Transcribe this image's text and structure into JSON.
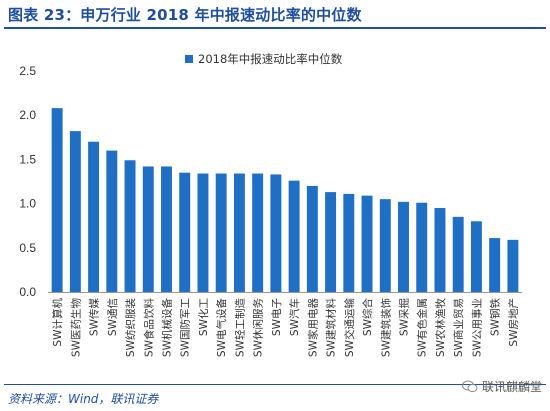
{
  "header": {
    "title": "图表 23：申万行业 2018 年中报速动比率的中位数"
  },
  "footer": {
    "source": "资料来源：Wind，联讯证券",
    "watermark": "联讯麒麟堂"
  },
  "colors": {
    "bar": "#1f6fc5",
    "accent": "#1f4e9c"
  },
  "chart_data": {
    "type": "bar",
    "title": "",
    "xlabel": "",
    "ylabel": "",
    "legend": "top-center",
    "grid": false,
    "ylim": [
      0,
      2.5
    ],
    "yticks": [
      "0.0",
      "0.5",
      "1.0",
      "1.5",
      "2.0",
      "2.5"
    ],
    "categories": [
      "SW计算机",
      "SW医药生物",
      "SW传媒",
      "SW通信",
      "SW纺织服装",
      "SW食品饮料",
      "SW机械设备",
      "SW国防军工",
      "SW化工",
      "SW电气设备",
      "SW轻工制造",
      "SW休闲服务",
      "SW电子",
      "SW汽车",
      "SW家用电器",
      "SW建筑材料",
      "SW交通运输",
      "SW综合",
      "SW建筑装饰",
      "SW采掘",
      "SW有色金属",
      "SW农林渔牧",
      "SW商业贸易",
      "SW公用事业",
      "SW钢铁",
      "SW房地产"
    ],
    "series": [
      {
        "name": "2018年中报速动比率中位数",
        "values": [
          2.08,
          1.82,
          1.7,
          1.6,
          1.49,
          1.42,
          1.42,
          1.35,
          1.34,
          1.34,
          1.34,
          1.34,
          1.33,
          1.26,
          1.2,
          1.13,
          1.11,
          1.09,
          1.05,
          1.02,
          1.01,
          0.95,
          0.85,
          0.8,
          0.61,
          0.59
        ]
      }
    ]
  }
}
